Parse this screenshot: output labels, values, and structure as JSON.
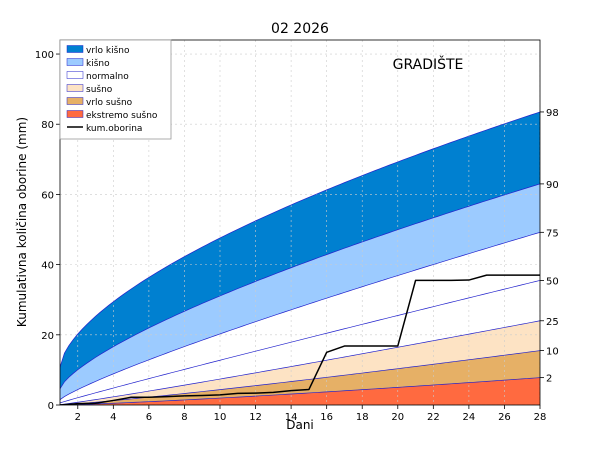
{
  "chart_data": {
    "type": "area",
    "title": "02 2026",
    "station": "GRADIŠTE",
    "xlabel": "Dani",
    "ylabel": "Kumulativna količina oborine (mm)",
    "xlim": [
      1,
      28
    ],
    "ylim": [
      0,
      104
    ],
    "x_ticks": [
      2,
      4,
      6,
      8,
      10,
      12,
      14,
      16,
      18,
      20,
      22,
      24,
      26,
      28
    ],
    "y_ticks": [
      0,
      20,
      40,
      60,
      80,
      100
    ],
    "y_tick_labels": [
      "0",
      "20",
      "40",
      "60",
      "80",
      "100"
    ],
    "grid": true,
    "legend_position": "top-left",
    "percentile_labels": [
      "98",
      "90",
      "75",
      "50",
      "25",
      "10",
      "2"
    ],
    "percentile_curves": [
      {
        "p": "98",
        "y1": 10.8,
        "y28": 83.5,
        "power": 0.62
      },
      {
        "p": "90",
        "y1": 4.6,
        "y28": 63.0,
        "power": 0.72
      },
      {
        "p": "75",
        "y1": 1.5,
        "y28": 49.2,
        "power": 0.85
      },
      {
        "p": "50",
        "y1": 0.6,
        "y28": 35.5,
        "power": 0.96
      },
      {
        "p": "25",
        "y1": 0.1,
        "y28": 24.0,
        "power": 1.08
      },
      {
        "p": "10",
        "y1": 0.0,
        "y28": 15.5,
        "power": 1.15
      },
      {
        "p": "2",
        "y1": 0.0,
        "y28": 7.8,
        "power": 1.25
      }
    ],
    "bands": [
      {
        "name": "vrlo kišno",
        "from": "90",
        "to": "98",
        "color": "#0080d0"
      },
      {
        "name": "kišno",
        "from": "75",
        "to": "90",
        "color": "#9ccbff"
      },
      {
        "name": "normalno",
        "from": "25",
        "to": "75",
        "color": "#ffffff"
      },
      {
        "name": "sušno",
        "from": "10",
        "to": "25",
        "color": "#fde3c4"
      },
      {
        "name": "vrlo sušno",
        "from": "2",
        "to": "10",
        "color": "#e6b066"
      },
      {
        "name": "ekstremo sušno",
        "from": "0",
        "to": "2",
        "color": "#ff6a40"
      }
    ],
    "legend": [
      {
        "label": "vrlo kišno",
        "color": "#0080d0",
        "kind": "patch"
      },
      {
        "label": "kišno",
        "color": "#9ccbff",
        "kind": "patch"
      },
      {
        "label": "normalno",
        "color": "#ffffff",
        "kind": "patch"
      },
      {
        "label": "sušno",
        "color": "#fde3c4",
        "kind": "patch"
      },
      {
        "label": "vrlo sušno",
        "color": "#e6b066",
        "kind": "patch"
      },
      {
        "label": "ekstremo sušno",
        "color": "#ff6a40",
        "kind": "patch"
      },
      {
        "label": "kum.oborina",
        "color": "#000000",
        "kind": "line"
      }
    ],
    "kum_oborina": {
      "x": [
        1,
        2,
        3,
        4,
        5,
        6,
        7,
        8,
        9,
        10,
        11,
        12,
        13,
        14,
        15,
        16,
        17,
        18,
        19,
        20,
        21,
        22,
        23,
        24,
        25,
        26,
        27,
        28
      ],
      "y": [
        0,
        0.4,
        0.5,
        1.3,
        2.2,
        2.2,
        2.4,
        2.6,
        2.7,
        2.9,
        3.3,
        3.4,
        3.6,
        4.1,
        4.4,
        15.0,
        16.8,
        16.8,
        16.8,
        16.8,
        35.5,
        35.5,
        35.5,
        35.6,
        37.0,
        37.0,
        37.0,
        37.0
      ]
    },
    "colors": {
      "percentile_line": "#2222cc",
      "kum_line": "#000000",
      "grid": "#cccccc"
    }
  }
}
